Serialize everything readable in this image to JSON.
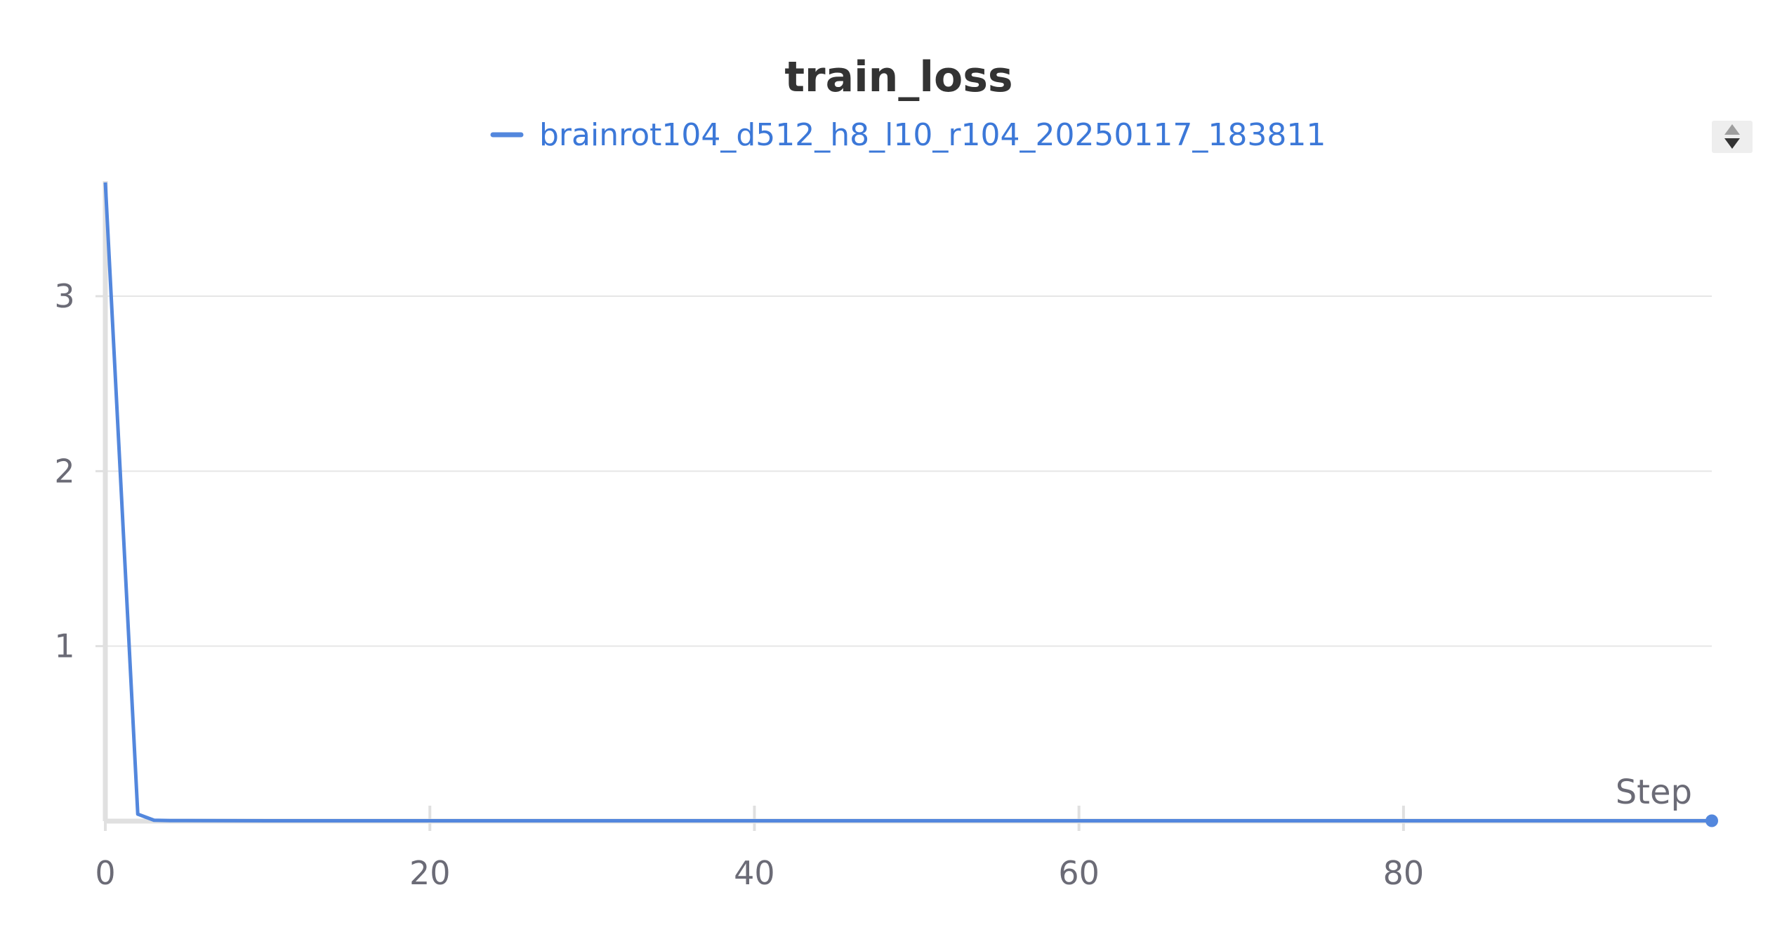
{
  "chart_data": {
    "type": "line",
    "title": "train_loss",
    "xlabel": "Step",
    "ylabel": "",
    "xlim": [
      0,
      99
    ],
    "ylim": [
      0,
      3.65
    ],
    "x_ticks": [
      0,
      20,
      40,
      60,
      80
    ],
    "y_ticks": [
      1,
      2,
      3
    ],
    "grid": true,
    "legend_position": "top-center",
    "series": [
      {
        "name": "brainrot104_d512_h8_l10_r104_20250117_183811",
        "color": "#5387dd",
        "x": [
          0,
          1,
          2,
          3,
          4,
          5,
          10,
          20,
          30,
          40,
          50,
          60,
          70,
          80,
          90,
          99
        ],
        "y": [
          3.65,
          1.85,
          0.04,
          0.005,
          0.003,
          0.003,
          0.002,
          0.002,
          0.002,
          0.002,
          0.002,
          0.002,
          0.002,
          0.002,
          0.002,
          0.002
        ]
      }
    ]
  },
  "legend": {
    "scroll_icon": "up-down-arrows-icon"
  },
  "colors": {
    "series": "#5387dd",
    "legend_text": "#3c78d8",
    "title": "#333333",
    "ticks": "#6b6b76",
    "grid": "#e6e6e6",
    "axis": "#e0e0e0"
  }
}
